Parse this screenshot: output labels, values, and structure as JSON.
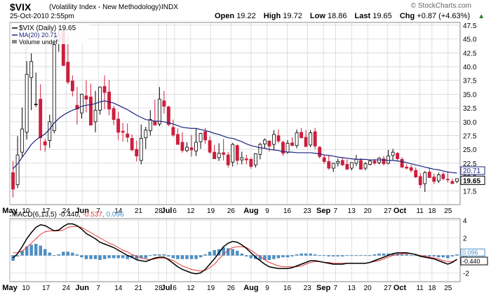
{
  "header": {
    "symbol": "$VIX",
    "description": "(Volatility Index - New Methodology)",
    "exchange": "INDX",
    "date": "25-Oct-2010 2:55pm",
    "open_label": "Open",
    "open": "19.22",
    "high_label": "High",
    "high": "19.72",
    "low_label": "Low",
    "low": "18.86",
    "last_label": "Last",
    "last": "19.65",
    "chg_label": "Chg",
    "chg": "+0.87 (+4.63%)",
    "chg_arrow": "▲",
    "brand": "© StockCharts.com"
  },
  "colors": {
    "up": "#000000",
    "down": "#cc1e3c",
    "ma": "#1a237e",
    "macd": "#000000",
    "signal": "#e53935",
    "hist": "#4a90c8",
    "grid": "#c8c8c8"
  },
  "chart_data": [
    {
      "type": "candlestick",
      "legend": [
        "$VIX (Daily) 19.65",
        "MA(20) 20.71",
        "Volume undef"
      ],
      "ylim": [
        15,
        48
      ],
      "y_ticks": [
        17.5,
        20.0,
        22.5,
        25.0,
        27.5,
        30.0,
        32.5,
        35.0,
        37.5,
        40.0,
        42.5,
        45.0,
        47.5
      ],
      "x_ticks": [
        "May",
        "10",
        "17",
        "24",
        "Jun",
        "7",
        "14",
        "21",
        "28",
        "Jul",
        "6",
        "12",
        "19",
        "26",
        "Aug",
        "9",
        "16",
        "23",
        "Sep",
        "7",
        "13",
        "20",
        "27",
        "Oct",
        "11",
        "18",
        "25"
      ],
      "last_labels": {
        "ma": "20.71",
        "close": "19.65"
      },
      "candles": [
        [
          20.8,
          22.9,
          16.3,
          17.8
        ],
        [
          18.6,
          27.4,
          18.0,
          24.0
        ],
        [
          24.5,
          32.6,
          23.6,
          28.7
        ],
        [
          28.1,
          41.0,
          26.8,
          38.6
        ],
        [
          38.0,
          42.4,
          32.1,
          40.9
        ],
        [
          33.1,
          38.9,
          32.7,
          33.2
        ],
        [
          34.1,
          36.8,
          24.8,
          27.1
        ],
        [
          26.4,
          26.9,
          24.6,
          25.8
        ],
        [
          26.6,
          31.3,
          25.3,
          30.0
        ],
        [
          28.4,
          46.6,
          27.9,
          44.0
        ],
        [
          44.8,
          47.7,
          42.7,
          45.6
        ],
        [
          46.5,
          47.2,
          40.1,
          40.2
        ],
        [
          40.8,
          45.8,
          36.8,
          37.2
        ],
        [
          37.4,
          38.4,
          34.6,
          35.6
        ],
        [
          33.0,
          36.3,
          29.5,
          32.3
        ],
        [
          31.6,
          35.1,
          30.6,
          35.0
        ],
        [
          34.7,
          37.5,
          31.7,
          34.1
        ],
        [
          34.5,
          36.9,
          29.4,
          29.4
        ],
        [
          30.0,
          35.6,
          28.1,
          32.1
        ],
        [
          32.1,
          36.4,
          31.3,
          36.3
        ],
        [
          36.4,
          38.4,
          32.3,
          35.3
        ],
        [
          35.4,
          37.6,
          31.2,
          32.3
        ],
        [
          32.4,
          32.9,
          29.4,
          30.4
        ],
        [
          30.5,
          31.8,
          26.7,
          28.1
        ],
        [
          28.3,
          29.8,
          26.4,
          28.1
        ],
        [
          27.8,
          29.7,
          26.3,
          27.2
        ],
        [
          27.0,
          27.7,
          24.7,
          24.9
        ],
        [
          25.0,
          26.6,
          22.8,
          23.8
        ],
        [
          23.0,
          29.5,
          22.3,
          27.0
        ],
        [
          27.1,
          29.1,
          25.1,
          28.5
        ],
        [
          28.4,
          32.1,
          27.5,
          30.4
        ],
        [
          30.1,
          34.0,
          29.4,
          29.4
        ],
        [
          29.6,
          36.3,
          29.2,
          34.1
        ],
        [
          33.8,
          35.6,
          31.5,
          32.8
        ],
        [
          32.7,
          32.9,
          29.2,
          29.5
        ],
        [
          29.0,
          30.4,
          27.3,
          27.6
        ],
        [
          27.7,
          28.8,
          25.9,
          25.9
        ],
        [
          26.3,
          28.1,
          24.4,
          24.8
        ],
        [
          24.8,
          26.3,
          24.5,
          25.4
        ],
        [
          25.3,
          27.6,
          23.7,
          24.9
        ],
        [
          24.7,
          28.7,
          23.8,
          26.3
        ],
        [
          26.4,
          28.0,
          25.1,
          27.9
        ],
        [
          28.2,
          28.9,
          26.0,
          26.7
        ],
        [
          26.6,
          27.3,
          24.2,
          24.5
        ],
        [
          24.5,
          25.8,
          23.3,
          23.3
        ],
        [
          23.5,
          26.1,
          22.9,
          24.3
        ],
        [
          24.4,
          26.9,
          23.0,
          24.1
        ],
        [
          24.0,
          24.5,
          21.7,
          22.2
        ],
        [
          22.7,
          26.2,
          21.9,
          25.9
        ],
        [
          25.7,
          25.9,
          22.2,
          23.0
        ],
        [
          23.1,
          24.6,
          22.3,
          23.5
        ],
        [
          23.3,
          24.0,
          22.3,
          23.1
        ],
        [
          23.2,
          23.5,
          21.5,
          21.9
        ],
        [
          22.2,
          24.3,
          21.7,
          24.2
        ],
        [
          24.1,
          26.2,
          23.2,
          25.9
        ],
        [
          26.0,
          27.0,
          25.2,
          26.7
        ],
        [
          26.5,
          26.7,
          24.6,
          25.6
        ],
        [
          25.9,
          28.5,
          25.0,
          27.7
        ],
        [
          27.5,
          28.6,
          26.1,
          26.5
        ],
        [
          26.3,
          26.6,
          23.8,
          24.3
        ],
        [
          24.5,
          26.7,
          24.2,
          26.1
        ],
        [
          26.2,
          27.2,
          25.6,
          25.7
        ],
        [
          25.7,
          28.6,
          25.2,
          28.0
        ],
        [
          28.1,
          28.9,
          27.0,
          27.1
        ],
        [
          27.2,
          28.5,
          25.5,
          25.5
        ],
        [
          25.8,
          28.5,
          25.4,
          28.0
        ],
        [
          28.2,
          28.9,
          25.0,
          25.6
        ],
        [
          25.4,
          25.6,
          23.3,
          23.7
        ],
        [
          23.5,
          24.0,
          22.4,
          22.8
        ],
        [
          22.8,
          24.0,
          21.3,
          21.6
        ],
        [
          21.6,
          22.6,
          20.9,
          22.5
        ],
        [
          22.5,
          23.3,
          21.9,
          22.8
        ],
        [
          23.0,
          23.6,
          22.0,
          22.2
        ],
        [
          22.3,
          23.2,
          21.4,
          21.4
        ],
        [
          21.6,
          22.7,
          21.2,
          22.6
        ],
        [
          22.5,
          24.0,
          22.0,
          23.2
        ],
        [
          23.0,
          23.4,
          21.4,
          21.4
        ],
        [
          21.6,
          22.7,
          21.2,
          22.4
        ],
        [
          22.3,
          23.2,
          22.1,
          22.9
        ],
        [
          22.9,
          23.3,
          22.2,
          22.5
        ],
        [
          22.6,
          23.6,
          22.3,
          23.4
        ],
        [
          23.3,
          23.8,
          22.1,
          22.4
        ],
        [
          22.5,
          24.9,
          22.3,
          23.8
        ],
        [
          23.9,
          25.1,
          23.1,
          24.5
        ],
        [
          24.3,
          24.5,
          23.0,
          23.3
        ],
        [
          23.2,
          23.6,
          21.6,
          21.8
        ],
        [
          21.8,
          22.3,
          21.4,
          21.6
        ],
        [
          21.7,
          22.2,
          20.8,
          21.2
        ],
        [
          21.2,
          21.7,
          19.8,
          20.0
        ],
        [
          20.1,
          20.7,
          18.0,
          18.6
        ],
        [
          18.8,
          21.1,
          17.3,
          20.8
        ],
        [
          20.9,
          21.7,
          19.8,
          19.9
        ],
        [
          20.0,
          20.6,
          18.7,
          19.2
        ],
        [
          19.3,
          20.8,
          18.9,
          20.4
        ],
        [
          20.5,
          20.9,
          19.4,
          19.7
        ],
        [
          19.6,
          21.0,
          19.0,
          19.5
        ],
        [
          19.2,
          19.7,
          18.9,
          18.8
        ],
        [
          19.2,
          19.7,
          18.9,
          19.7
        ]
      ],
      "ma": [
        21.5,
        22.4,
        23.6,
        24.7,
        25.9,
        26.7,
        27.3,
        27.8,
        28.7,
        29.8,
        30.6,
        31.2,
        31.7,
        32.1,
        32.4,
        32.8,
        33.0,
        33.1,
        33.3,
        33.6,
        33.8,
        33.6,
        33.4,
        33.0,
        32.6,
        32.2,
        31.7,
        31.2,
        30.8,
        30.4,
        30.3,
        30.1,
        30.1,
        30.0,
        29.8,
        29.6,
        29.3,
        29.0,
        28.9,
        28.8,
        28.8,
        28.6,
        28.4,
        28.2,
        27.9,
        27.7,
        27.4,
        27.1,
        27.0,
        26.7,
        26.4,
        26.0,
        25.7,
        25.5,
        25.3,
        25.2,
        25.0,
        24.9,
        24.8,
        24.6,
        24.5,
        24.5,
        24.4,
        24.4,
        24.4,
        24.4,
        24.3,
        24.2,
        24.0,
        23.9,
        23.8,
        23.6,
        23.5,
        23.4,
        23.3,
        23.2,
        23.2,
        23.2,
        23.1,
        23.1,
        23.1,
        23.1,
        23.0,
        23.0,
        22.9,
        22.8,
        22.6,
        22.4,
        22.2,
        22.0,
        21.8,
        21.6,
        21.4,
        21.3,
        21.1,
        20.9,
        20.8,
        20.71
      ]
    },
    {
      "type": "macd",
      "legend": [
        "MACD(6,13,5)",
        "-0.440",
        "-0.537",
        "0.096"
      ],
      "ylim": [
        -3,
        4.2
      ],
      "y_ticks": [
        4,
        2,
        0,
        -2
      ],
      "y_tick_labels": [
        "4",
        "2",
        "0",
        "-2"
      ],
      "marker_labels": [
        "0.096",
        "-0.440"
      ],
      "macd": [
        -0.3,
        0.2,
        1.0,
        1.9,
        2.6,
        3.2,
        3.5,
        3.4,
        3.1,
        2.8,
        2.9,
        3.3,
        3.6,
        3.6,
        3.4,
        3.0,
        2.5,
        2.2,
        1.9,
        1.5,
        1.3,
        1.1,
        0.9,
        0.6,
        0.3,
        0.0,
        -0.2,
        -0.5,
        -0.6,
        -0.7,
        -0.5,
        -0.3,
        -0.2,
        -0.2,
        -0.5,
        -0.9,
        -1.3,
        -1.6,
        -1.8,
        -2.0,
        -2.1,
        -2.0,
        -1.6,
        -1.0,
        -0.4,
        0.3,
        1.0,
        1.4,
        1.6,
        1.5,
        1.2,
        0.8,
        0.3,
        -0.2,
        -0.6,
        -1.0,
        -1.3,
        -1.4,
        -1.5,
        -1.5,
        -1.5,
        -1.4,
        -1.2,
        -1.0,
        -0.8,
        -0.6,
        -0.6,
        -0.7,
        -0.8,
        -0.9,
        -1.0,
        -1.0,
        -1.0,
        -0.9,
        -0.9,
        -0.9,
        -0.9,
        -0.9,
        -0.8,
        -0.6,
        -0.4,
        -0.2,
        0.0,
        0.2,
        0.3,
        0.3,
        0.3,
        0.2,
        0.1,
        -0.1,
        -0.2,
        -0.3,
        -0.4,
        -0.6,
        -0.8,
        -1.0,
        -0.8,
        -0.44
      ],
      "signal": [
        0.3,
        0.3,
        0.5,
        0.9,
        1.4,
        1.9,
        2.4,
        2.7,
        2.8,
        2.8,
        2.8,
        2.9,
        3.2,
        3.3,
        3.3,
        3.2,
        2.9,
        2.6,
        2.3,
        2.0,
        1.7,
        1.4,
        1.2,
        0.9,
        0.6,
        0.4,
        0.1,
        -0.1,
        -0.3,
        -0.4,
        -0.5,
        -0.4,
        -0.3,
        -0.3,
        -0.4,
        -0.6,
        -0.9,
        -1.2,
        -1.4,
        -1.6,
        -1.7,
        -1.8,
        -1.7,
        -1.4,
        -1.0,
        -0.4,
        0.1,
        0.6,
        0.9,
        1.0,
        1.0,
        0.9,
        0.6,
        0.2,
        -0.1,
        -0.5,
        -0.8,
        -1.0,
        -1.2,
        -1.3,
        -1.3,
        -1.3,
        -1.3,
        -1.2,
        -1.0,
        -0.8,
        -0.7,
        -0.7,
        -0.8,
        -0.8,
        -0.9,
        -0.9,
        -0.9,
        -0.9,
        -0.9,
        -0.9,
        -0.9,
        -0.9,
        -0.8,
        -0.7,
        -0.6,
        -0.4,
        -0.2,
        0.0,
        0.1,
        0.2,
        0.2,
        0.2,
        0.1,
        0.0,
        -0.1,
        -0.2,
        -0.3,
        -0.4,
        -0.6,
        -0.7,
        -0.7,
        -0.537
      ]
    }
  ]
}
